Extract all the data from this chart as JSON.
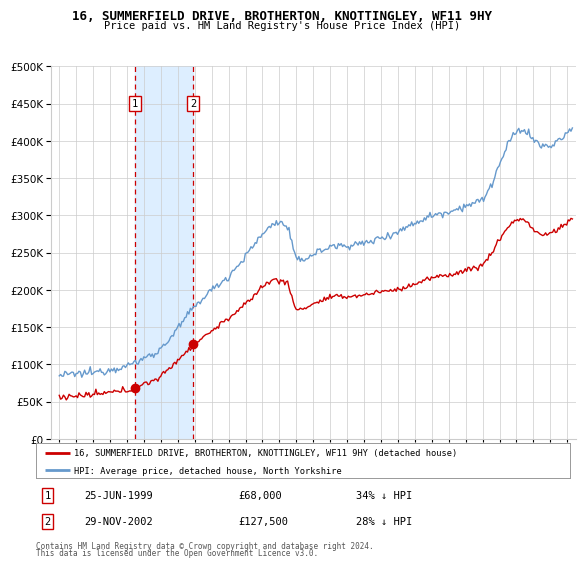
{
  "title": "16, SUMMERFIELD DRIVE, BROTHERTON, KNOTTINGLEY, WF11 9HY",
  "subtitle": "Price paid vs. HM Land Registry's House Price Index (HPI)",
  "legend_property": "16, SUMMERFIELD DRIVE, BROTHERTON, KNOTTINGLEY, WF11 9HY (detached house)",
  "legend_hpi": "HPI: Average price, detached house, North Yorkshire",
  "footnote1": "Contains HM Land Registry data © Crown copyright and database right 2024.",
  "footnote2": "This data is licensed under the Open Government Licence v3.0.",
  "sale1_date": 1999.48,
  "sale1_price": 68000,
  "sale1_label": "1",
  "sale1_text": "25-JUN-1999",
  "sale1_price_str": "£68,000",
  "sale1_pct": "34% ↓ HPI",
  "sale2_date": 2002.91,
  "sale2_price": 127500,
  "sale2_label": "2",
  "sale2_text": "29-NOV-2002",
  "sale2_price_str": "£127,500",
  "sale2_pct": "28% ↓ HPI",
  "property_color": "#cc0000",
  "hpi_color": "#6699cc",
  "shade_color": "#ddeeff",
  "vline_color": "#cc0000",
  "background_color": "#ffffff",
  "grid_color": "#cccccc",
  "ylim": [
    0,
    500000
  ],
  "yticks": [
    0,
    50000,
    100000,
    150000,
    200000,
    250000,
    300000,
    350000,
    400000,
    450000,
    500000
  ],
  "xlim_start": 1994.5,
  "xlim_end": 2025.5,
  "xtick_years": [
    1995,
    1996,
    1997,
    1998,
    1999,
    2000,
    2001,
    2002,
    2003,
    2004,
    2005,
    2006,
    2007,
    2008,
    2009,
    2010,
    2011,
    2012,
    2013,
    2014,
    2015,
    2016,
    2017,
    2018,
    2019,
    2020,
    2021,
    2022,
    2023,
    2024,
    2025
  ]
}
